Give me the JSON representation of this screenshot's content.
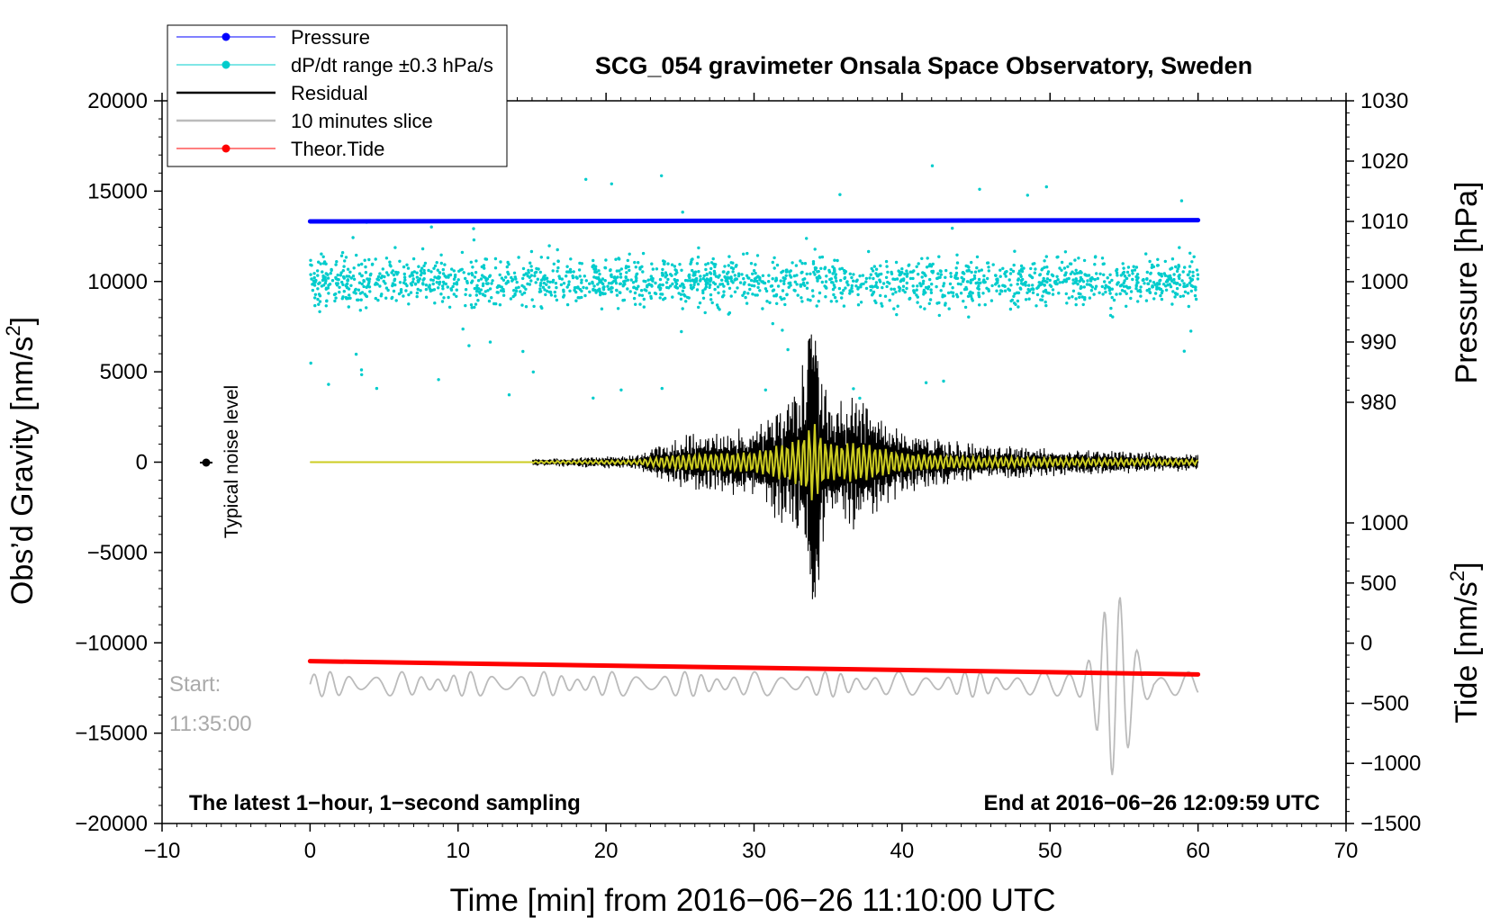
{
  "chart_data": {
    "type": "line",
    "title": "SCG_054 gravimeter Onsala Space Observatory, Sweden",
    "xlabel": "Time [min] from 2016−06−26 11:10:00 UTC",
    "ylabel_left": "Obs’d Gravity [nm/s",
    "ylabel_left_sup": "2",
    "ylabel_left_end": "]",
    "ylabel_right_pressure": "Pressure [hPa]",
    "ylabel_right_tide": "Tide [nm/s",
    "ylabel_right_tide_sup": "2",
    "ylabel_right_tide_end": "]",
    "xlim": [
      -10,
      70
    ],
    "ylim_left": [
      -20000,
      20000
    ],
    "pressure_axis_range": [
      980,
      1030
    ],
    "tide_axis_range": [
      -1500,
      1000
    ],
    "x_ticks": [
      -10,
      0,
      10,
      20,
      30,
      40,
      50,
      60,
      70
    ],
    "x_tick_labels": [
      "−10",
      "0",
      "10",
      "20",
      "30",
      "40",
      "50",
      "60",
      "70"
    ],
    "y_left_ticks": [
      20000,
      15000,
      10000,
      5000,
      0,
      -5000,
      -10000,
      -15000,
      -20000
    ],
    "y_left_tick_labels": [
      "20000",
      "15000",
      "10000",
      "5000",
      "0",
      "−5000",
      "−10000",
      "−15000",
      "−20000"
    ],
    "pressure_ticks": [
      1030,
      1020,
      1010,
      1000,
      990,
      980
    ],
    "pressure_tick_labels": [
      "1030",
      "1020",
      "1010",
      "1000",
      "990",
      "980"
    ],
    "tide_ticks": [
      1000,
      500,
      0,
      -500,
      -1000,
      -1500
    ],
    "tide_tick_labels": [
      "1000",
      "500",
      "0",
      "−500",
      "−1000",
      "−1500"
    ],
    "legend": [
      {
        "label": "Pressure",
        "color": "#0000ff",
        "marker": "dot"
      },
      {
        "label": "dP/dt range ±0.3 hPa/s",
        "color": "#00cccc",
        "marker": "dot"
      },
      {
        "label": "Residual",
        "color": "#000000",
        "marker": "line"
      },
      {
        "label": "10 minutes slice",
        "color": "#bbbbbb",
        "marker": "line"
      },
      {
        "label": "Theor.Tide",
        "color": "#ff0000",
        "marker": "dot"
      }
    ],
    "series": [
      {
        "name": "Pressure",
        "axis": "pressure",
        "x": [
          0,
          60
        ],
        "values": [
          1010.0,
          1010.2
        ],
        "color": "#0000ff"
      },
      {
        "name": "dP/dt range ±0.3 hPa/s",
        "axis": "left",
        "x_range": [
          0,
          60
        ],
        "center": 10000,
        "spread": 3000,
        "color": "#00cccc"
      },
      {
        "name": "Residual",
        "axis": "left",
        "x": [
          0,
          15,
          22,
          25,
          30,
          33,
          34,
          35,
          37,
          40,
          45,
          50,
          60
        ],
        "envelope": [
          0,
          200,
          400,
          1500,
          2000,
          4500,
          8000,
          3500,
          4000,
          1800,
          1000,
          800,
          500
        ],
        "color": "#000000"
      },
      {
        "name": "Residual (smoothed)",
        "axis": "left",
        "color": "#cccc22"
      },
      {
        "name": "10 minutes slice",
        "axis": "left",
        "x_range": [
          0,
          60
        ],
        "center": -12300,
        "color": "#bbbbbb"
      },
      {
        "name": "Theor.Tide",
        "axis": "tide",
        "x": [
          0,
          60
        ],
        "values": [
          -150,
          -260
        ],
        "color": "#ff0000"
      }
    ],
    "annotations": {
      "noise_label": "Typical noise level",
      "noise_x": -7,
      "start_label": "Start:",
      "start_time": "11:35:00",
      "footer_left": "The latest 1−hour, 1−second sampling",
      "footer_right": "End at 2016−06−26 12:09:59 UTC"
    }
  }
}
